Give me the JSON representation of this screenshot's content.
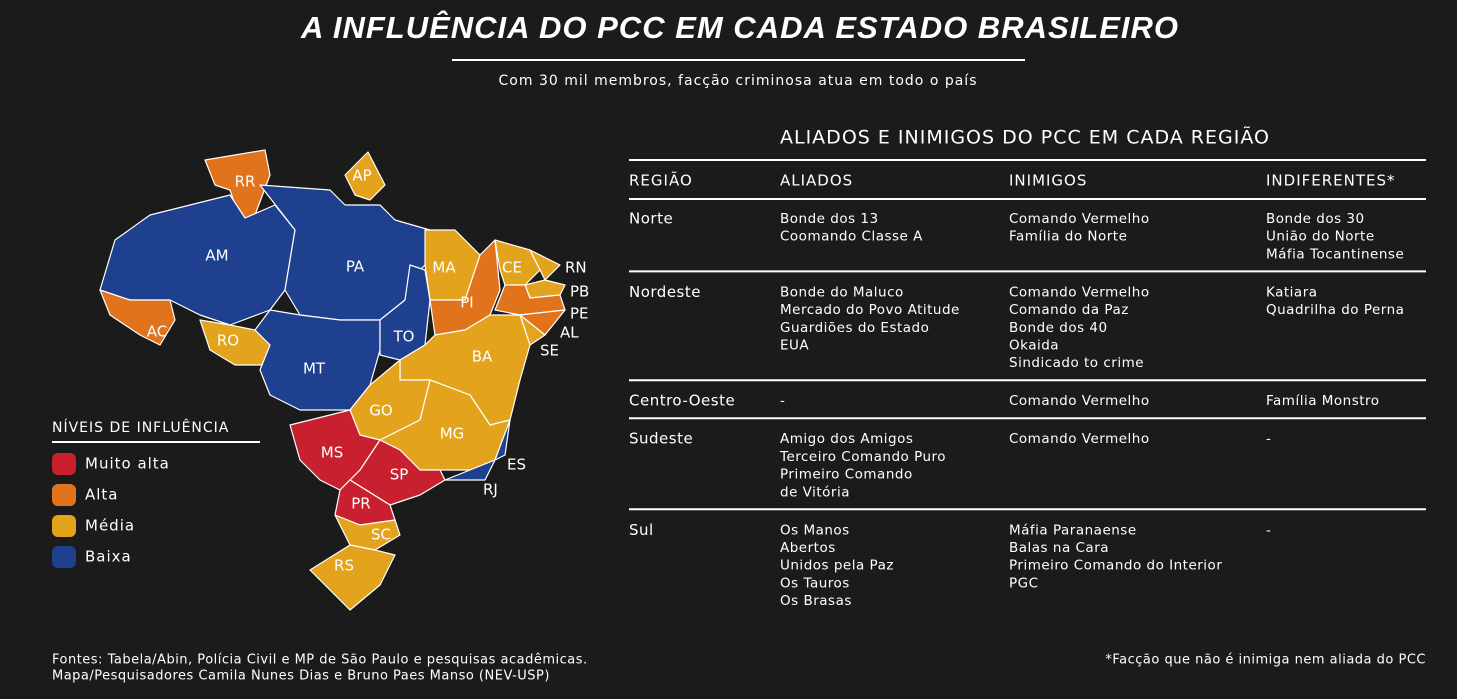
{
  "header": {
    "title": "A INFLUÊNCIA DO PCC EM CADA ESTADO BRASILEIRO",
    "subtitle": "Com 30 mil membros, facção criminosa atua em todo o país"
  },
  "map": {
    "legend_title": "NÍVEIS DE INFLUÊNCIA",
    "levels": [
      {
        "label": "Muito alta",
        "color": "#c8202e",
        "states": [
          "MS",
          "SP",
          "PR"
        ]
      },
      {
        "label": "Alta",
        "color": "#e0731b",
        "states": [
          "RR",
          "AC",
          "PI",
          "PE",
          "AL"
        ]
      },
      {
        "label": "Média",
        "color": "#e3a31c",
        "states": [
          "AP",
          "MA",
          "CE",
          "RN",
          "PB",
          "SE",
          "BA",
          "RO",
          "GO",
          "MG",
          "SC",
          "RS"
        ]
      },
      {
        "label": "Baixa",
        "color": "#1f3f8f",
        "states": [
          "AM",
          "PA",
          "TO",
          "MT",
          "ES",
          "RJ"
        ]
      }
    ]
  },
  "table": {
    "title": "ALIADOS E INIMIGOS DO PCC EM CADA REGIÃO",
    "columns": [
      "REGIÃO",
      "ALIADOS",
      "INIMIGOS",
      "INDIFERENTES*"
    ],
    "rows": [
      [
        "Norte",
        [
          "Bonde dos 13",
          "Coomando Classe A"
        ],
        [
          "Comando Vermelho",
          "Família do Norte"
        ],
        [
          "Bonde dos 30",
          "União do Norte",
          "Máfia Tocantinense"
        ]
      ],
      [
        "Nordeste",
        [
          "Bonde do Maluco",
          "Mercado do Povo Atitude",
          "Guardiões do Estado",
          "EUA"
        ],
        [
          "Comando Vermelho",
          "Comando da Paz",
          "Bonde dos 40",
          "Okaida",
          "Sindicado to crime"
        ],
        [
          "Katiara",
          "Quadrilha do Perna"
        ]
      ],
      [
        "Centro-Oeste",
        [
          "-"
        ],
        [
          "Comando Vermelho"
        ],
        [
          "Família Monstro"
        ]
      ],
      [
        "Sudeste",
        [
          "Amigo dos Amigos",
          "Terceiro Comando Puro",
          "Primeiro Comando",
          "de Vitória"
        ],
        [
          "Comando Vermelho"
        ],
        [
          "-"
        ]
      ],
      [
        "Sul",
        [
          "Os Manos",
          "Abertos",
          "Unidos pela Paz",
          "Os Tauros",
          "Os Brasas"
        ],
        [
          "Máfia Paranaense",
          "Balas na Cara",
          "Primeiro Comando do Interior",
          "PGC"
        ],
        [
          "-"
        ]
      ]
    ]
  },
  "footer": {
    "sources": [
      "Fontes: Tabela/Abin, Polícia Civil e MP de São Paulo e pesquisas acadêmicas.",
      "Mapa/Pesquisadores Camila Nunes Dias e Bruno Paes Manso (NEV-USP)"
    ],
    "note": "*Facção que não é inimiga nem aliada do PCC"
  }
}
